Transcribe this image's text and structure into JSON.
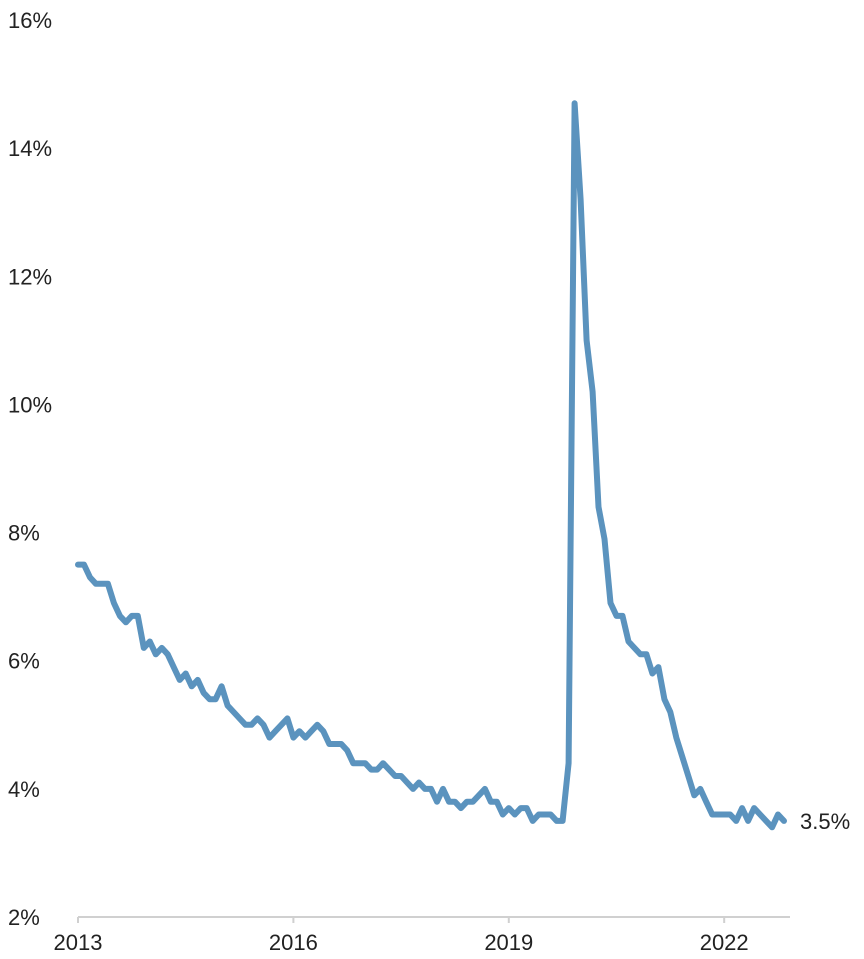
{
  "chart_data": {
    "type": "line",
    "title": "",
    "xlabel": "",
    "ylabel": "",
    "x_start": "2013-01",
    "x_end": "2022-12",
    "x_ticks": [
      {
        "label": "2013",
        "value": 2013
      },
      {
        "label": "2016",
        "value": 2016
      },
      {
        "label": "2019",
        "value": 2019
      },
      {
        "label": "2022",
        "value": 2022
      }
    ],
    "y_ticks": [
      {
        "label": "2%",
        "value": 2
      },
      {
        "label": "4%",
        "value": 4
      },
      {
        "label": "6%",
        "value": 6
      },
      {
        "label": "8%",
        "value": 8
      },
      {
        "label": "10%",
        "value": 10
      },
      {
        "label": "12%",
        "value": 12
      },
      {
        "label": "14%",
        "value": 14
      },
      {
        "label": "16%",
        "value": 16
      }
    ],
    "ylim": [
      2,
      16
    ],
    "xlim": [
      "2013-01",
      "2022-12"
    ],
    "grid": false,
    "series_color": "#5b93be",
    "series": [
      {
        "values": [
          7.5,
          7.5,
          7.3,
          7.2,
          7.2,
          7.2,
          6.9,
          6.7,
          6.6,
          6.7,
          6.7,
          6.2,
          6.3,
          6.1,
          6.2,
          6.1,
          5.9,
          5.7,
          5.8,
          5.6,
          5.7,
          5.5,
          5.4,
          5.4,
          5.6,
          5.3,
          5.2,
          5.1,
          5.0,
          5.0,
          5.1,
          5.0,
          4.8,
          4.9,
          5.0,
          5.1,
          4.8,
          4.9,
          4.8,
          4.9,
          5.0,
          4.9,
          4.7,
          4.7,
          4.7,
          4.6,
          4.4,
          4.4,
          4.4,
          4.3,
          4.3,
          4.4,
          4.3,
          4.2,
          4.2,
          4.1,
          4.0,
          4.1,
          4.0,
          4.0,
          3.8,
          4.0,
          3.8,
          3.8,
          3.7,
          3.8,
          3.8,
          3.9,
          4.0,
          3.8,
          3.8,
          3.6,
          3.7,
          3.6,
          3.7,
          3.7,
          3.5,
          3.6,
          3.6,
          3.6,
          3.5,
          3.5,
          4.4,
          14.7,
          13.2,
          11.0,
          10.2,
          8.4,
          7.9,
          6.9,
          6.7,
          6.7,
          6.3,
          6.2,
          6.1,
          6.1,
          5.8,
          5.9,
          5.4,
          5.2,
          4.8,
          4.5,
          4.2,
          3.9,
          4.0,
          3.8,
          3.6,
          3.6,
          3.6,
          3.6,
          3.5,
          3.7,
          3.5,
          3.7,
          3.6,
          3.5,
          3.4,
          3.6,
          3.5
        ]
      }
    ],
    "end_label": "3.5%"
  }
}
